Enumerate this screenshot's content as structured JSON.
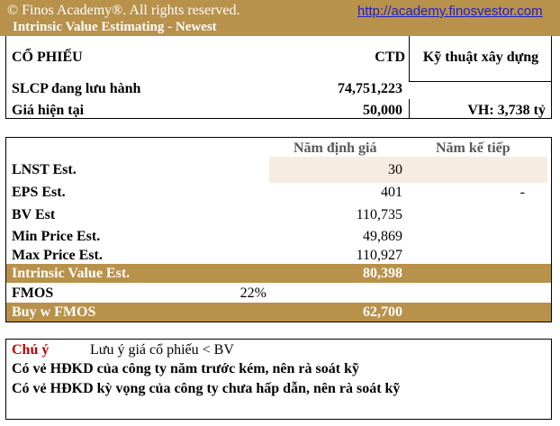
{
  "header": {
    "copyright": "© Finos Academy®. All rights reserved.",
    "url": "http://academy.finosvestor.com",
    "title": "Intrinsic Value Estimating - Newest"
  },
  "summary": {
    "stock_label": "CỔ PHIẾU",
    "ticker": "CTD",
    "sector": "Kỹ thuật xây dựng",
    "shares_label": "SLCP đang lưu hành",
    "shares_value": "74,751,223",
    "price_label": "Giá hiện tại",
    "price_value": "50,000",
    "market_cap": "VH:  3,738 tỷ"
  },
  "valuation": {
    "col_current": "Năm định giá",
    "col_next": "Năm kế tiếp",
    "rows": [
      {
        "label": "LNST Est.",
        "current": "30",
        "next": ""
      },
      {
        "label": "EPS Est.",
        "current": "401",
        "next": "-"
      },
      {
        "label": "BV Est",
        "current": "110,735",
        "next": ""
      },
      {
        "label": "Min Price Est.",
        "current": "49,869",
        "next": ""
      },
      {
        "label": "Max Price Est.",
        "current": "110,927",
        "next": ""
      }
    ],
    "intrinsic_label": "Intrinsic Value Est.",
    "intrinsic_value": "80,398",
    "fmos_label": "FMOS",
    "fmos_value": "22%",
    "buy_label": "Buy w FMOS",
    "buy_value": "62,700"
  },
  "notes": {
    "title": "Chú ý",
    "first": "Lưu ý giá cổ phiếu < BV",
    "second": "Có vẻ HĐKD của công ty năm trước kém, nên rà soát kỹ",
    "third": "Có vẻ HĐKD kỳ vọng của công ty chưa hấp dẫn, nên rà soát kỹ"
  },
  "colors": {
    "accent": "#b8914b",
    "highlight": "#f6ece1",
    "note_title": "#c00000",
    "link": "#1f1fd0"
  }
}
